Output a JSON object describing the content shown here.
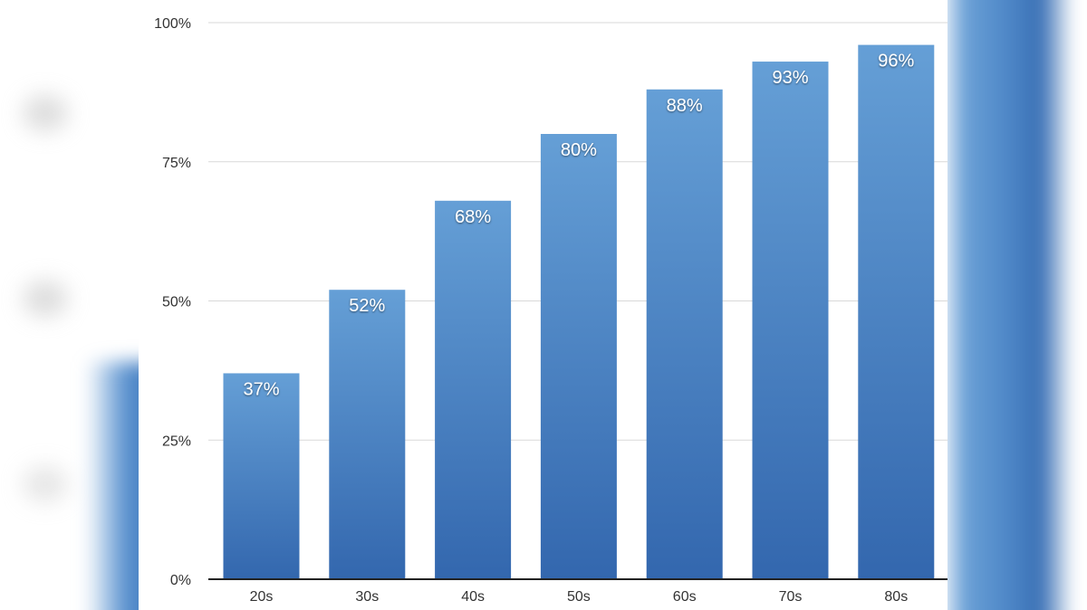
{
  "chart_data": {
    "type": "bar",
    "categories": [
      "20s",
      "30s",
      "40s",
      "50s",
      "60s",
      "70s",
      "80s"
    ],
    "values": [
      37,
      52,
      68,
      80,
      88,
      93,
      96
    ],
    "data_labels": [
      "37%",
      "52%",
      "68%",
      "80%",
      "88%",
      "93%",
      "96%"
    ],
    "title": "",
    "xlabel": "",
    "ylabel": "",
    "ylim": [
      0,
      100
    ],
    "yticks": [
      0,
      25,
      50,
      75,
      100
    ],
    "ytick_labels": [
      "0%",
      "25%",
      "50%",
      "75%",
      "100%"
    ],
    "grid": true,
    "legend": "none",
    "colors": {
      "bar_top": "#659fd6",
      "bar_bottom": "#3367ae",
      "grid": "#d9d9d9",
      "axis": "#222222"
    }
  }
}
